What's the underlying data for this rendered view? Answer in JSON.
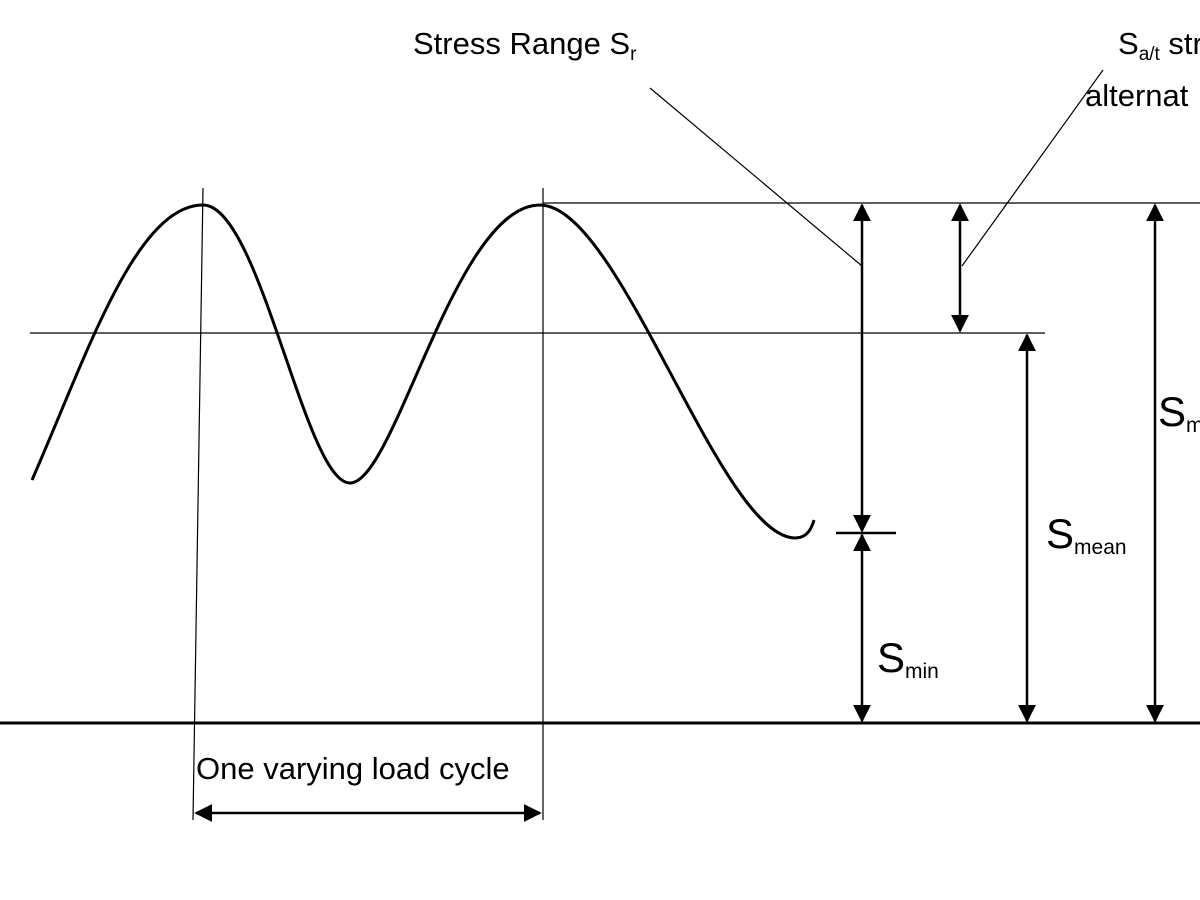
{
  "labels": {
    "stress_range": {
      "main": "Stress Range S",
      "sub": "r"
    },
    "alternating": {
      "main": "S",
      "sub": "a/t",
      "tail": " str",
      "line2": "alternat"
    },
    "s_max": {
      "main": "S",
      "sub": "m"
    },
    "s_mean": {
      "main": "S",
      "sub": "mean"
    },
    "s_min": {
      "main": "S",
      "sub": "min"
    },
    "cycle": "One varying load cycle"
  },
  "colors": {
    "stroke": "#000000",
    "background": "#ffffff"
  }
}
